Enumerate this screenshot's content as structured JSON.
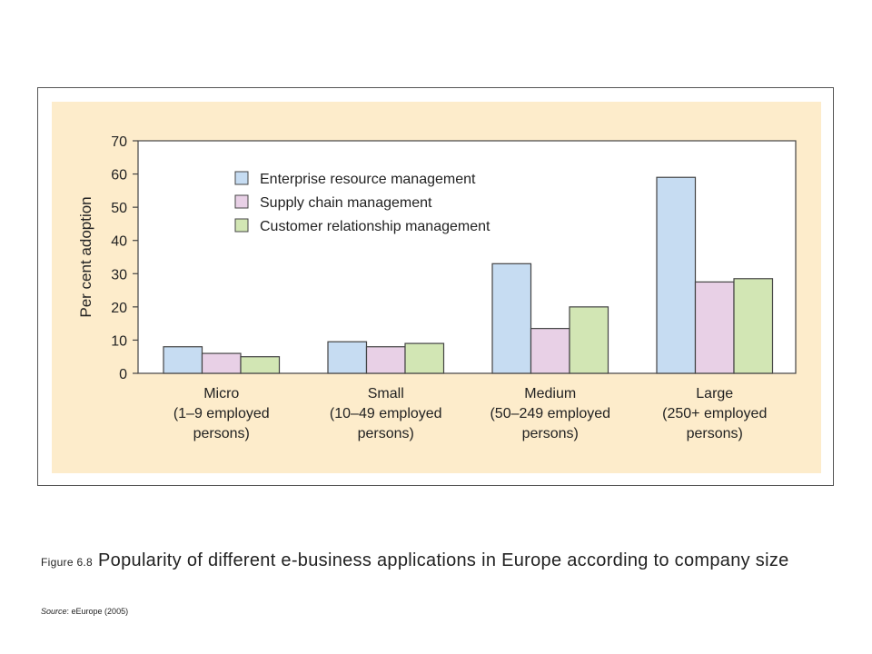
{
  "figure": {
    "label": "Figure 6.8",
    "title": "Popularity of different e-business applications in Europe according to company size",
    "source_key": "Source",
    "source_text": ": eEurope (2005)"
  },
  "chart_data": {
    "type": "bar",
    "ylabel": "Per cent adoption",
    "xlabel": "",
    "ylim": [
      0,
      70
    ],
    "yticks": [
      0,
      10,
      20,
      30,
      40,
      50,
      60,
      70
    ],
    "legend_position": "top-left",
    "grid": false,
    "categories": [
      [
        "Micro",
        "(1–9 employed",
        "persons)"
      ],
      [
        "Small",
        "(10–49 employed",
        "persons)"
      ],
      [
        "Medium",
        "(50–249 employed",
        "persons)"
      ],
      [
        "Large",
        "(250+ employed",
        "persons)"
      ]
    ],
    "series": [
      {
        "name": "Enterprise resource management",
        "color": "#c6dcf2",
        "values": [
          8,
          9.5,
          33,
          59
        ]
      },
      {
        "name": "Supply chain management",
        "color": "#e8d0e6",
        "values": [
          6,
          8,
          13.5,
          27.5
        ]
      },
      {
        "name": "Customer relationship management",
        "color": "#d2e6b4",
        "values": [
          5,
          9,
          20,
          28.5
        ]
      }
    ],
    "panel_color": "#fdeccb",
    "plot_color": "#ffffff"
  }
}
